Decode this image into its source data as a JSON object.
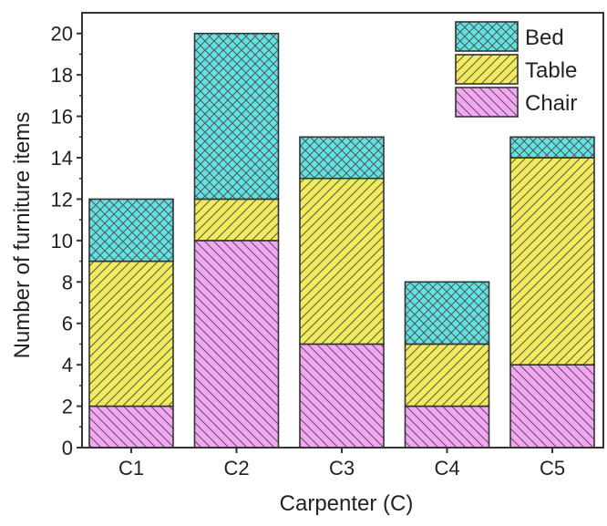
{
  "chart_data": {
    "type": "bar",
    "stacked": true,
    "xlabel": "Carpenter (C)",
    "ylabel": "Number of furniture items",
    "categories": [
      "C1",
      "C2",
      "C3",
      "C4",
      "C5"
    ],
    "ylim": [
      0,
      21
    ],
    "yticks": [
      0,
      2,
      4,
      6,
      8,
      10,
      12,
      14,
      16,
      18,
      20
    ],
    "grid": false,
    "legend_position": "top-right",
    "series": [
      {
        "name": "Chair",
        "values": [
          2,
          10,
          5,
          2,
          4
        ],
        "color": "#f4a6f4",
        "hatch": "diagonal-down"
      },
      {
        "name": "Table",
        "values": [
          7,
          2,
          8,
          3,
          10
        ],
        "color": "#f2ec5c",
        "hatch": "diagonal-up"
      },
      {
        "name": "Bed",
        "values": [
          3,
          8,
          2,
          3,
          1
        ],
        "color": "#5fe3e3",
        "hatch": "crosshatch"
      }
    ]
  }
}
